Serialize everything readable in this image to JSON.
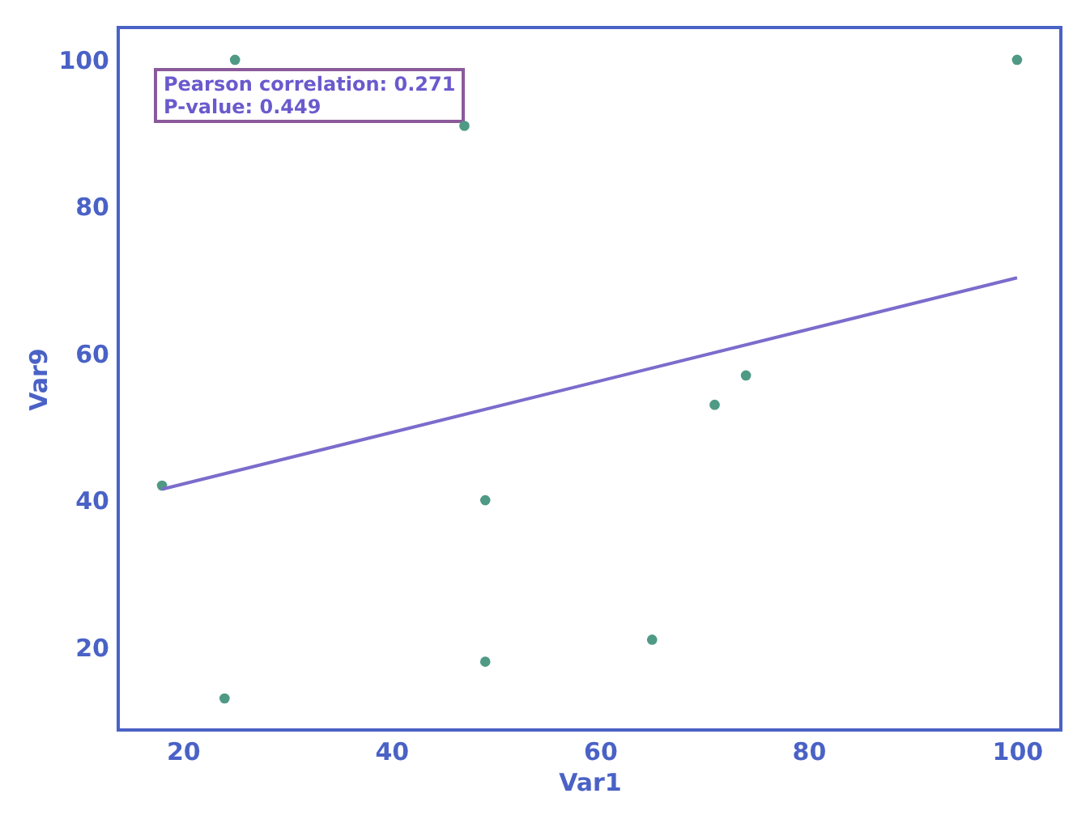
{
  "chart_data": {
    "type": "scatter",
    "xlabel": "Var1",
    "ylabel": "Var9",
    "annotations": [
      "Pearson correlation: 0.271",
      "P-value: 0.449"
    ],
    "xlim": [
      13.8,
      104.2
    ],
    "xticks": [
      20,
      40,
      60,
      80,
      100
    ],
    "ylim": [
      8.7,
      104.4
    ],
    "yticks": [
      20,
      40,
      60,
      80,
      100
    ],
    "grid": false,
    "series": [
      {
        "marker": "circle",
        "color": "#4f9a84",
        "x": [
          18,
          25,
          24,
          47,
          49,
          49,
          65,
          71,
          74,
          100
        ],
        "values": [
          42,
          100,
          13,
          91,
          40,
          18,
          21,
          53,
          57,
          100
        ]
      },
      {
        "type": "line",
        "color": "#7b6ccc",
        "x": [
          18,
          100
        ],
        "values": [
          41.5,
          70.3
        ]
      }
    ]
  }
}
